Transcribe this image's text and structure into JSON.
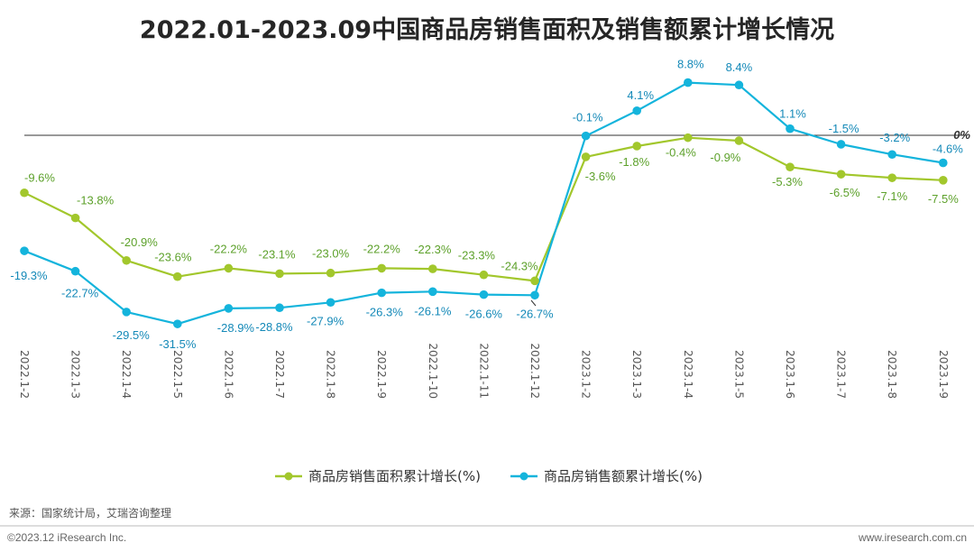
{
  "source_note": "来源：国家统计局，艾瑞咨询整理",
  "copyright": "©2023.12 iResearch Inc.",
  "website": "www.iresearch.com.cn",
  "colors": {
    "area_series": "#A2C72C",
    "amount_series": "#14B4DC",
    "area_label": "#5DA12B",
    "amount_label": "#1489B8"
  },
  "chart_data": {
    "type": "line",
    "title": "2022.01-2023.09中国商品房销售面积及销售额累计增长情况",
    "categories": [
      "2022.1-2",
      "2022.1-3",
      "2022.1-4",
      "2022.1-5",
      "2022.1-6",
      "2022.1-7",
      "2022.1-8",
      "2022.1-9",
      "2022.1-10",
      "2022.1-11",
      "2022.1-12",
      "2023.1-2",
      "2023.1-3",
      "2023.1-4",
      "2023.1-5",
      "2023.1-6",
      "2023.1-7",
      "2023.1-8",
      "2023.1-9"
    ],
    "series": [
      {
        "name": "商品房销售面积累计增长(%)",
        "values": [
          -9.6,
          -13.8,
          -20.9,
          -23.6,
          -22.2,
          -23.1,
          -23.0,
          -22.2,
          -22.3,
          -23.3,
          -24.3,
          -3.6,
          -1.8,
          -0.4,
          -0.9,
          -5.3,
          -6.5,
          -7.1,
          -7.5
        ]
      },
      {
        "name": "商品房销售额累计增长(%)",
        "values": [
          -19.3,
          -22.7,
          -29.5,
          -31.5,
          -28.9,
          -28.8,
          -27.9,
          -26.3,
          -26.1,
          -26.6,
          -26.7,
          -0.1,
          4.1,
          8.8,
          8.4,
          1.1,
          -1.5,
          -3.2,
          -4.6
        ]
      }
    ],
    "zero_line_label": "0%",
    "ylim": [
      -34,
      10
    ],
    "legend": "bottom"
  }
}
